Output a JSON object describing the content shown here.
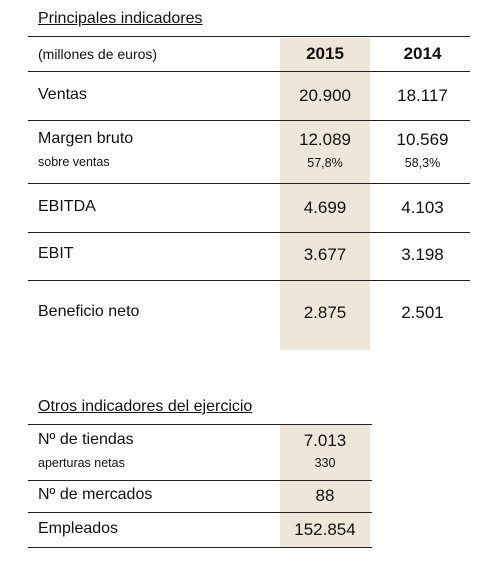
{
  "sections": [
    {
      "title": "Principales indicadores",
      "header": [
        "(millones de euros)",
        "2015",
        "2014"
      ],
      "rows": [
        {
          "label": "Ventas",
          "values": [
            "20.900",
            "18.117"
          ]
        },
        {
          "label": "Margen bruto",
          "values": [
            "12.089",
            "10.569"
          ],
          "sublabel": "sobre ventas",
          "subvalues": [
            "57,8%",
            "58,3%"
          ]
        },
        {
          "label": "EBITDA",
          "values": [
            "4.699",
            "4.103"
          ]
        },
        {
          "label": "EBIT",
          "values": [
            "3.677",
            "3.198"
          ]
        },
        {
          "label": "Beneficio neto",
          "values": [
            "2.875",
            "2.501"
          ]
        }
      ]
    },
    {
      "title": "Otros indicadores del ejercicio",
      "rows": [
        {
          "label": "Nº de tiendas",
          "values": [
            "7.013"
          ],
          "sublabel": "aperturas netas",
          "subvalues": [
            "330"
          ]
        },
        {
          "label": "Nº de mercados",
          "values": [
            "88"
          ]
        },
        {
          "label": "Empleados",
          "values": [
            "152.854"
          ]
        }
      ]
    }
  ]
}
